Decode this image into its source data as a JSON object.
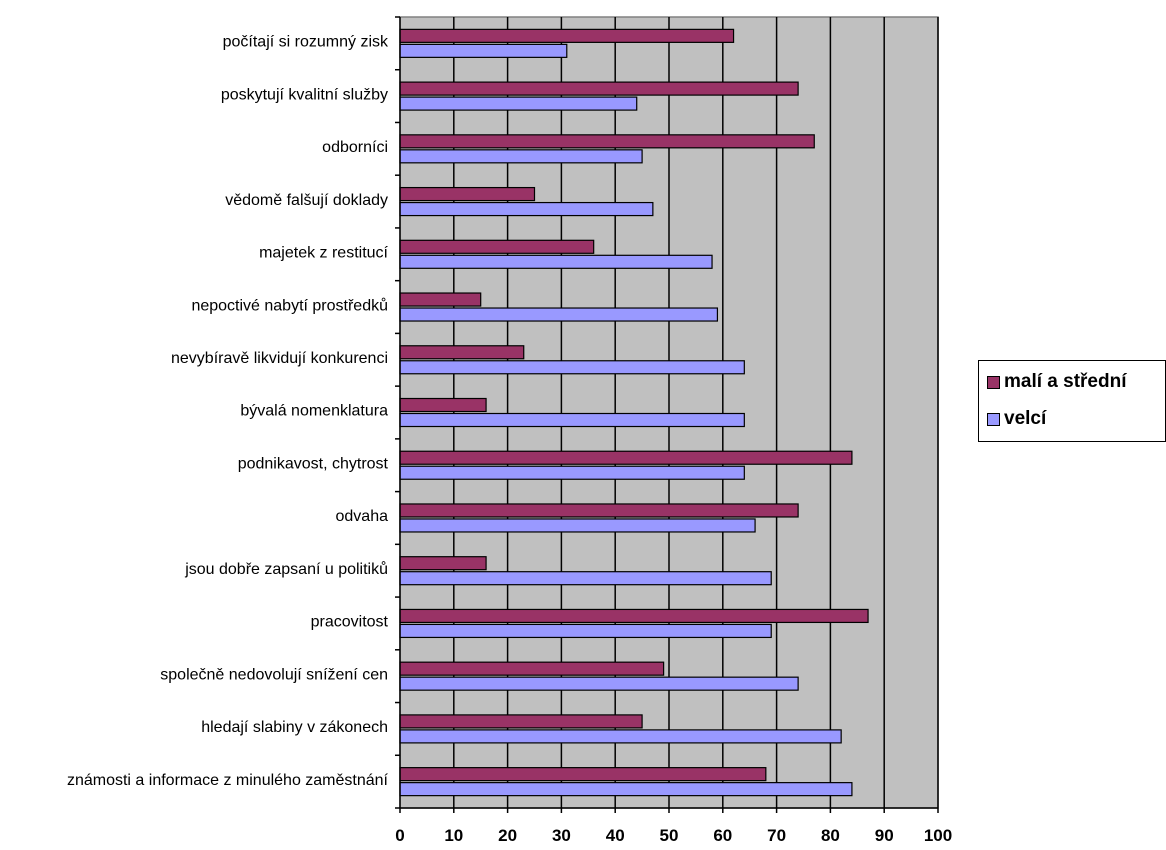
{
  "chart_data": {
    "type": "bar",
    "orientation": "horizontal",
    "categories": [
      "počítají si rozumný zisk",
      "poskytují kvalitní služby",
      "odborníci",
      "vědomě falšují doklady",
      "majetek z restitucí",
      "nepoctivé nabytí prostředků",
      "nevybíravě likvidují konkurenci",
      "bývalá nomenklatura",
      "podnikavost, chytrost",
      "odvaha",
      "jsou dobře zapsaní u politiků",
      "pracovitost",
      "společně nedovolují snížení cen",
      "hledají slabiny v zákonech",
      "známosti a informace z minulého zaměstnání"
    ],
    "series": [
      {
        "name": "malí a střední",
        "color": "#993366",
        "values": [
          62,
          74,
          77,
          25,
          36,
          15,
          23,
          16,
          84,
          74,
          16,
          87,
          49,
          45,
          68
        ]
      },
      {
        "name": "velcí",
        "color": "#9999FF",
        "values": [
          31,
          44,
          45,
          47,
          58,
          59,
          64,
          64,
          64,
          66,
          69,
          69,
          74,
          82,
          84
        ]
      }
    ],
    "xlim": [
      0,
      100
    ],
    "xticks": [
      "0",
      "10",
      "20",
      "30",
      "40",
      "50",
      "60",
      "70",
      "80",
      "90",
      "100"
    ],
    "grid": true,
    "plot_background": "#C0C0C0",
    "legend_position": "right"
  }
}
